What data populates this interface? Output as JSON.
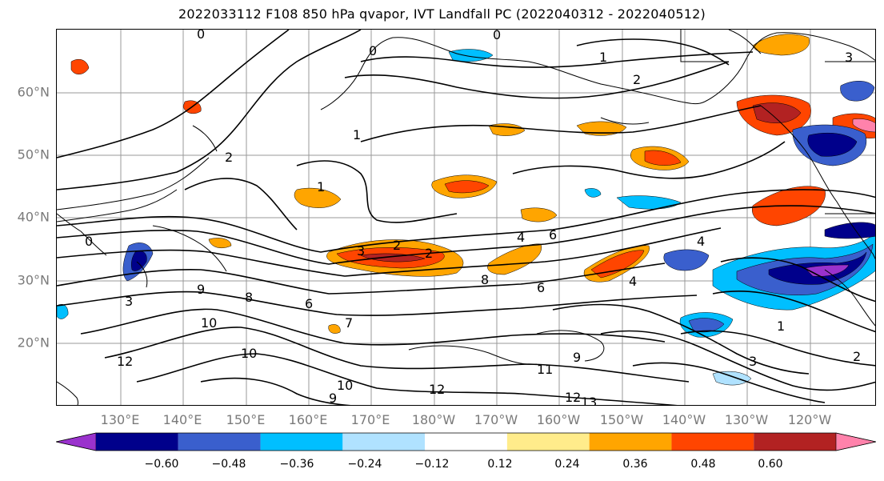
{
  "title": "2022033112 F108 850 hPa qvapor, IVT Landfall PC (2022040312 - 2022040512)",
  "lat_labels": [
    "60°N",
    "50°N",
    "40°N",
    "30°N",
    "20°N"
  ],
  "lon_labels": [
    "130°E",
    "140°E",
    "150°E",
    "160°E",
    "170°E",
    "180°W",
    "170°W",
    "160°W",
    "150°W",
    "140°W",
    "130°W",
    "120°W"
  ],
  "colorbar": {
    "ticks": [
      "−0.60",
      "−0.48",
      "−0.36",
      "−0.24",
      "−0.12",
      "0.12",
      "0.24",
      "0.36",
      "0.48",
      "0.60"
    ],
    "colors": [
      "#9a32cd",
      "#00008b",
      "#3a5fcd",
      "#00bfff",
      "#b0e2ff",
      "#ffffff",
      "#ffec8b",
      "#ffa500",
      "#ff4500",
      "#b22222",
      "#ff82ab"
    ]
  },
  "contour_labels": [
    "0",
    "1",
    "2",
    "3",
    "4",
    "6",
    "7",
    "8",
    "9",
    "10",
    "11",
    "12",
    "13"
  ],
  "colors": {
    "contour": "#000000",
    "grid": "#999999",
    "coast": "#000000"
  }
}
